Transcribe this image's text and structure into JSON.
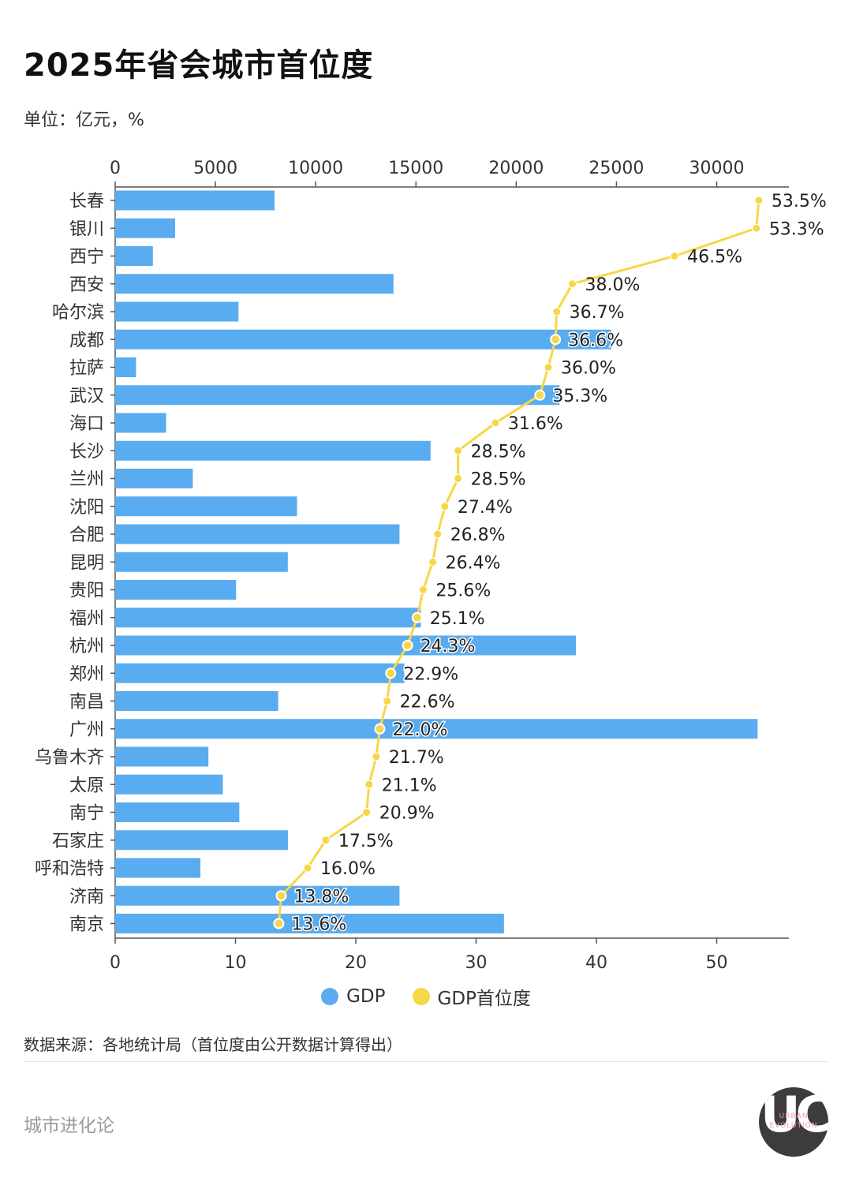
{
  "title": "2025年省会城市首位度",
  "unit": "单位：亿元，%",
  "source": "数据来源：各地统计局（首位度由公开数据计算得出）",
  "brand": "城市进化论",
  "logo": {
    "mark": "UC",
    "line1": "URBAN",
    "line2": "EVOLUTION"
  },
  "colors": {
    "gdp": "#5aacf0",
    "primacy": "#f7d747",
    "axis": "#555555"
  },
  "chart_data": {
    "type": "bar+line",
    "categories": [
      "长春",
      "银川",
      "西宁",
      "西安",
      "哈尔滨",
      "成都",
      "拉萨",
      "武汉",
      "海口",
      "长沙",
      "兰州",
      "沈阳",
      "合肥",
      "昆明",
      "贵阳",
      "福州",
      "杭州",
      "郑州",
      "南昌",
      "广州",
      "乌鲁木齐",
      "太原",
      "南宁",
      "石家庄",
      "呼和浩特",
      "济南",
      "南京"
    ],
    "series": [
      {
        "name": "GDP",
        "axis": "top",
        "values": [
          7950,
          2990,
          1880,
          13880,
          6150,
          24740,
          1040,
          22160,
          2540,
          15730,
          3870,
          9070,
          14180,
          8610,
          6030,
          15240,
          22980,
          14420,
          8130,
          32040,
          4650,
          5370,
          6190,
          8620,
          4250,
          14180,
          19390
        ]
      },
      {
        "name": "GDP首位度",
        "axis": "bottom",
        "values": [
          53.5,
          53.3,
          46.5,
          38.0,
          36.7,
          36.6,
          36.0,
          35.3,
          31.6,
          28.5,
          28.5,
          27.4,
          26.8,
          26.4,
          25.6,
          25.1,
          24.3,
          22.9,
          22.6,
          22.0,
          21.7,
          21.1,
          20.9,
          17.5,
          16.0,
          13.8,
          13.6
        ],
        "labels": [
          "53.5%",
          "53.3%",
          "46.5%",
          "38.0%",
          "36.7%",
          "36.6%",
          "36.0%",
          "35.3%",
          "31.6%",
          "28.5%",
          "28.5%",
          "27.4%",
          "26.8%",
          "26.4%",
          "25.6%",
          "25.1%",
          "24.3%",
          "22.9%",
          "22.6%",
          "22.0%",
          "21.7%",
          "21.1%",
          "20.9%",
          "17.5%",
          "16.0%",
          "13.8%",
          "13.6%"
        ]
      }
    ],
    "x_top": {
      "range": [
        0,
        33600
      ],
      "ticks": [
        0,
        5000,
        10000,
        15000,
        20000,
        25000,
        30000
      ]
    },
    "x_bottom": {
      "range": [
        0,
        56
      ],
      "ticks": [
        0,
        10,
        20,
        30,
        40,
        50
      ]
    },
    "legend": [
      "GDP",
      "GDP首位度"
    ],
    "legend_position": "bottom",
    "grid": false
  }
}
